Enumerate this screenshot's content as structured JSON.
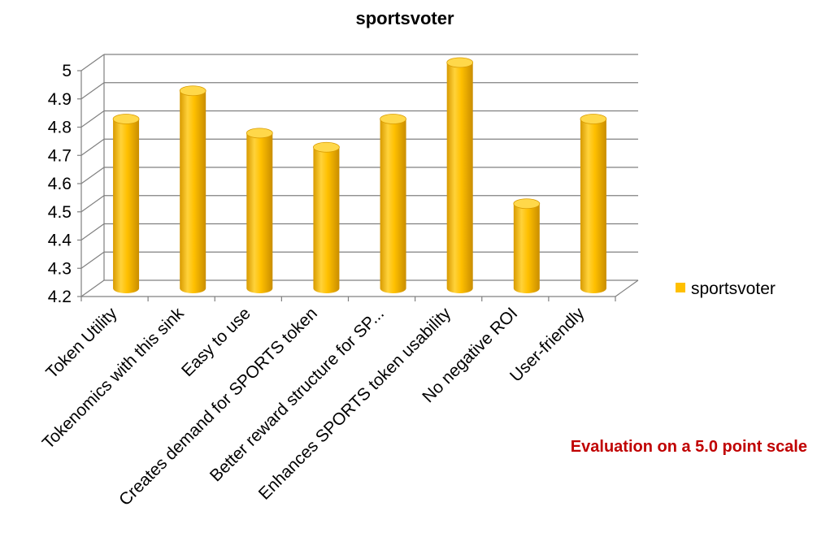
{
  "chart_data": {
    "type": "bar",
    "title": "sportsvoter",
    "categories": [
      "Token Utility",
      "Tokenomics with this sink",
      "Easy to use",
      "Creates demand for SPORTS token",
      "Better reward structure for SP...",
      "Enhances SPORTS token usability",
      "No negative ROI",
      "User-friendly"
    ],
    "series": [
      {
        "name": "sportsvoter",
        "values": [
          4.8,
          4.9,
          4.75,
          4.7,
          4.8,
          5.0,
          4.5,
          4.8
        ]
      }
    ],
    "yticks": [
      "4.2",
      "4.3",
      "4.4",
      "4.5",
      "4.6",
      "4.7",
      "4.8",
      "4.9",
      "5"
    ],
    "ylim": [
      4.2,
      5.0
    ],
    "xlabel": "",
    "ylabel": "",
    "legend_position": "right",
    "style": "3d-cylinder",
    "grid": true
  },
  "annotation": {
    "text": "Evaluation on a 5.0 point scale"
  },
  "colors": {
    "bar": "#FFC000",
    "bar_dark": "#D89A00",
    "bar_light": "#FFE680",
    "bar_top": "#FFD84A",
    "annotation": "#C00000"
  }
}
